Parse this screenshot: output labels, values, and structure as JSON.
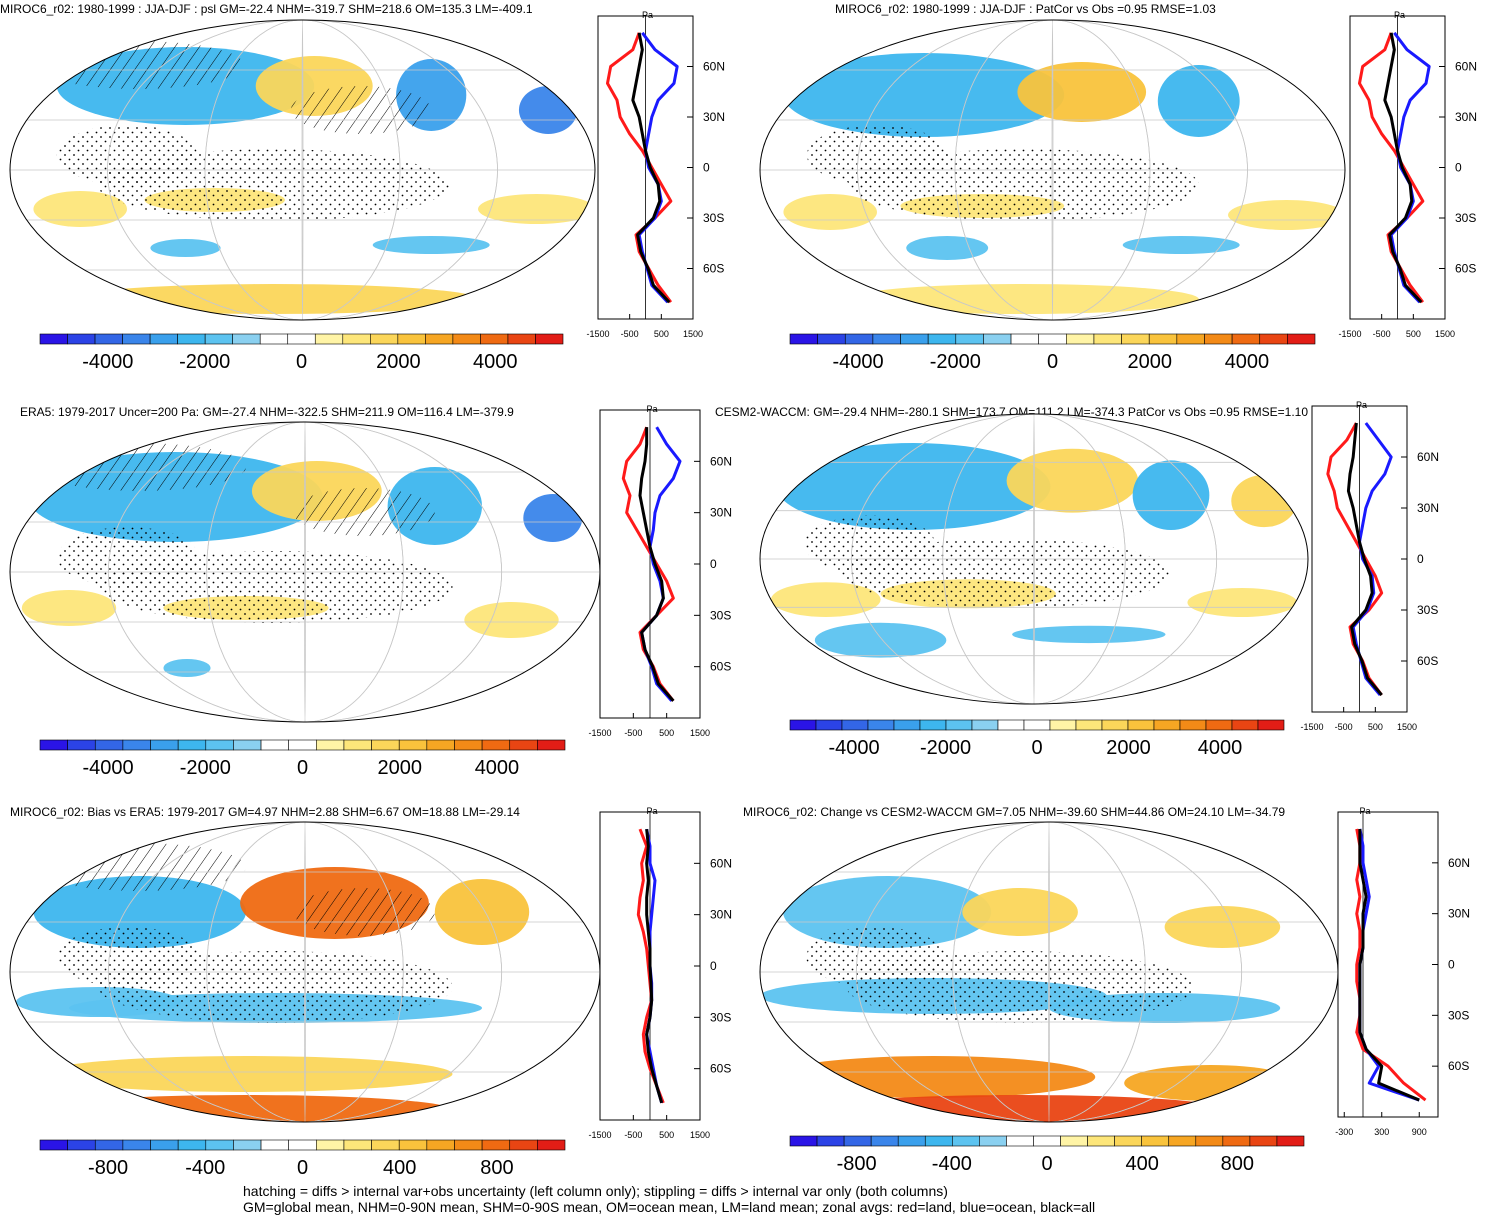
{
  "figure": {
    "footnote_1": "hatching = diffs > internal var+obs uncertainty (left column only); stippling = diffs > internal var only (both columns)",
    "footnote_2": "GM=global mean, NHM=0-90N mean, SHM=0-90S mean, OM=ocean mean, LM=land mean; zonal avgs: red=land, blue=ocean, black=all"
  },
  "colors": {
    "land_line": "#ff1a1a",
    "ocean_line": "#1a1aff",
    "all_line": "#000000",
    "palette": [
      "#2a14e6",
      "#2b43e6",
      "#3366e6",
      "#3a85ea",
      "#3aa0ec",
      "#3db6ee",
      "#5cc3f0",
      "#8ad0f0",
      "#ffffff",
      "#ffffff",
      "#fff4a6",
      "#fde67a",
      "#fbd65a",
      "#f9c33c",
      "#f6a623",
      "#f38a17",
      "#ef6a12",
      "#e94513",
      "#e21d16"
    ]
  },
  "chart_data": [
    {
      "type": "heatmap",
      "title": "MIROC6_r02: 1980-1999 : JJA-DJF : psl GM=-22.4 NHM=-319.7 SHM=218.6 OM=135.3 LM=-409.1",
      "colorbar": {
        "range": [
          -5400,
          5400
        ],
        "tick_values": [
          -4000,
          -2000,
          0,
          2000,
          4000
        ],
        "tick_labels": [
          "-4000",
          "-2000",
          "0",
          "2000",
          "4000"
        ]
      },
      "zonal": {
        "units": "Pa",
        "xlim": [
          -1500,
          1500
        ],
        "x_ticks": [
          "-1500",
          "-500",
          "500",
          "1500"
        ],
        "lat_ticks": [
          "60N",
          "30N",
          "0",
          "30S",
          "60S"
        ],
        "lat": [
          80,
          70,
          60,
          50,
          40,
          30,
          20,
          10,
          0,
          -10,
          -20,
          -30,
          -40,
          -50,
          -60,
          -70,
          -80
        ],
        "land": [
          -200,
          -400,
          -1100,
          -1200,
          -900,
          -800,
          -500,
          -100,
          200,
          500,
          800,
          300,
          -300,
          -200,
          100,
          400,
          800
        ],
        "ocean": [
          -100,
          300,
          1000,
          900,
          400,
          200,
          100,
          0,
          100,
          400,
          500,
          300,
          -200,
          -100,
          50,
          200,
          700
        ],
        "all": [
          -200,
          -100,
          -200,
          -300,
          -400,
          -200,
          -100,
          0,
          150,
          400,
          450,
          250,
          -250,
          -150,
          80,
          250,
          750
        ]
      }
    },
    {
      "type": "heatmap",
      "title": "MIROC6_r02: 1980-1999 : JJA-DJF : PatCor vs Obs =0.95 RMSE=1.03",
      "colorbar": {
        "range": [
          -5400,
          5400
        ],
        "tick_values": [
          -4000,
          -2000,
          0,
          2000,
          4000
        ],
        "tick_labels": [
          "-4000",
          "-2000",
          "0",
          "2000",
          "4000"
        ]
      },
      "zonal": {
        "units": "Pa",
        "xlim": [
          -1500,
          1500
        ],
        "x_ticks": [
          "-1500",
          "-500",
          "500",
          "1500"
        ],
        "lat_ticks": [
          "60N",
          "30N",
          "0",
          "30S",
          "60S"
        ],
        "lat": [
          80,
          70,
          60,
          50,
          40,
          30,
          20,
          10,
          0,
          -10,
          -20,
          -30,
          -40,
          -50,
          -60,
          -70,
          -80
        ],
        "land": [
          -200,
          -400,
          -1100,
          -1200,
          -900,
          -800,
          -500,
          -100,
          200,
          500,
          800,
          300,
          -300,
          -200,
          100,
          400,
          800
        ],
        "ocean": [
          -100,
          300,
          1000,
          900,
          400,
          200,
          100,
          0,
          100,
          400,
          500,
          300,
          -200,
          -100,
          50,
          200,
          700
        ],
        "all": [
          -200,
          -100,
          -200,
          -300,
          -400,
          -200,
          -100,
          0,
          150,
          400,
          450,
          250,
          -250,
          -150,
          80,
          250,
          750
        ]
      }
    },
    {
      "type": "heatmap",
      "title": "ERA5: 1979-2017 Uncer=200 Pa: GM=-27.4 NHM=-322.5 SHM=211.9 OM=116.4 LM=-379.9",
      "colorbar": {
        "range": [
          -5400,
          5400
        ],
        "tick_values": [
          -4000,
          -2000,
          0,
          2000,
          4000
        ],
        "tick_labels": [
          "-4000",
          "-2000",
          "0",
          "2000",
          "4000"
        ]
      },
      "zonal": {
        "units": "Pa",
        "xlim": [
          -1500,
          1500
        ],
        "x_ticks": [
          "-1500",
          "-500",
          "500",
          "1500"
        ],
        "lat_ticks": [
          "60N",
          "30N",
          "0",
          "30S",
          "60S"
        ],
        "lat": [
          80,
          70,
          60,
          50,
          40,
          30,
          20,
          10,
          0,
          -10,
          -20,
          -30,
          -40,
          -50,
          -60,
          -70,
          -80
        ],
        "land": [
          -100,
          -300,
          -700,
          -800,
          -600,
          -700,
          -400,
          -100,
          200,
          500,
          700,
          200,
          -300,
          -200,
          100,
          300,
          700
        ],
        "ocean": [
          200,
          500,
          900,
          700,
          300,
          150,
          100,
          0,
          100,
          300,
          400,
          200,
          -250,
          -150,
          50,
          200,
          650
        ],
        "all": [
          -100,
          -100,
          -150,
          -250,
          -300,
          -200,
          -100,
          0,
          150,
          350,
          400,
          200,
          -250,
          -150,
          80,
          250,
          700
        ]
      }
    },
    {
      "type": "heatmap",
      "title": "CESM2-WACCM: GM=-29.4 NHM=-280.1 SHM=173.7 OM=111.2 LM=-374.3 PatCor vs Obs =0.95 RMSE=1.10",
      "colorbar": {
        "range": [
          -5400,
          5400
        ],
        "tick_values": [
          -4000,
          -2000,
          0,
          2000,
          4000
        ],
        "tick_labels": [
          "-4000",
          "-2000",
          "0",
          "2000",
          "4000"
        ]
      },
      "zonal": {
        "units": "Pa",
        "xlim": [
          -1500,
          1500
        ],
        "x_ticks": [
          "-1500",
          "-500",
          "500",
          "1500"
        ],
        "lat_ticks": [
          "60N",
          "30N",
          "0",
          "30S",
          "60S"
        ],
        "lat": [
          80,
          70,
          60,
          50,
          40,
          30,
          20,
          10,
          0,
          -10,
          -20,
          -30,
          -40,
          -50,
          -60,
          -70,
          -80
        ],
        "land": [
          -100,
          -400,
          -900,
          -1000,
          -800,
          -700,
          -400,
          -100,
          200,
          500,
          700,
          300,
          -300,
          -200,
          100,
          300,
          700
        ],
        "ocean": [
          200,
          600,
          1000,
          800,
          400,
          200,
          100,
          0,
          100,
          400,
          450,
          250,
          -200,
          -100,
          50,
          200,
          650
        ],
        "all": [
          -100,
          -150,
          -200,
          -300,
          -350,
          -200,
          -100,
          0,
          150,
          350,
          400,
          200,
          -250,
          -150,
          80,
          250,
          700
        ]
      }
    },
    {
      "type": "heatmap",
      "title": "MIROC6_r02: Bias vs ERA5: 1979-2017 GM=4.97 NHM=2.88 SHM=6.67 OM=18.88 LM=-29.14",
      "colorbar": {
        "range": [
          -1080,
          1080
        ],
        "tick_values": [
          -800,
          -400,
          0,
          400,
          800
        ],
        "tick_labels": [
          "-800",
          "-400",
          "0",
          "400",
          "800"
        ]
      },
      "zonal": {
        "units": "Pa",
        "xlim": [
          -1500,
          1500
        ],
        "x_ticks": [
          "-1500",
          "-500",
          "500",
          "1500"
        ],
        "lat_ticks": [
          "60N",
          "30N",
          "0",
          "30S",
          "60S"
        ],
        "lat": [
          80,
          70,
          60,
          50,
          40,
          30,
          20,
          10,
          0,
          -10,
          -20,
          -30,
          -40,
          -50,
          -60,
          -70,
          -80
        ],
        "land": [
          -300,
          -100,
          -250,
          -200,
          -300,
          -350,
          -200,
          -100,
          -50,
          0,
          50,
          -100,
          -200,
          -150,
          0,
          200,
          400
        ],
        "ocean": [
          -100,
          0,
          0,
          150,
          100,
          50,
          0,
          0,
          0,
          50,
          50,
          0,
          -100,
          0,
          100,
          200,
          350
        ],
        "all": [
          -100,
          -50,
          -100,
          -50,
          -100,
          -100,
          -50,
          0,
          0,
          30,
          50,
          0,
          -100,
          -50,
          50,
          200,
          350
        ]
      }
    },
    {
      "type": "heatmap",
      "title": "MIROC6_r02: Change vs CESM2-WACCM GM=7.05 NHM=-39.60 SHM=44.86 OM=24.10 LM=-34.79",
      "colorbar": {
        "range": [
          -1080,
          1080
        ],
        "tick_values": [
          -800,
          -400,
          0,
          400,
          800
        ],
        "tick_labels": [
          "-800",
          "-400",
          "0",
          "400",
          "800"
        ]
      },
      "zonal": {
        "units": "Pa",
        "xlim": [
          -400,
          1200
        ],
        "x_ticks": [
          "-300",
          "300",
          "900"
        ],
        "lat_ticks": [
          "60N",
          "30N",
          "0",
          "30S",
          "60S"
        ],
        "lat": [
          80,
          70,
          60,
          50,
          40,
          30,
          20,
          10,
          0,
          -10,
          -20,
          -30,
          -40,
          -50,
          -60,
          -70,
          -80
        ],
        "land": [
          -100,
          -50,
          -50,
          -100,
          -50,
          -100,
          -50,
          -50,
          -100,
          -100,
          -50,
          -50,
          -100,
          0,
          400,
          650,
          1000
        ],
        "ocean": [
          -50,
          0,
          0,
          50,
          100,
          50,
          0,
          0,
          -50,
          -50,
          -50,
          -50,
          -50,
          50,
          250,
          100,
          900
        ],
        "all": [
          -50,
          -50,
          -50,
          0,
          50,
          0,
          0,
          0,
          -50,
          -50,
          -50,
          -50,
          -50,
          50,
          300,
          250,
          900
        ]
      }
    }
  ]
}
